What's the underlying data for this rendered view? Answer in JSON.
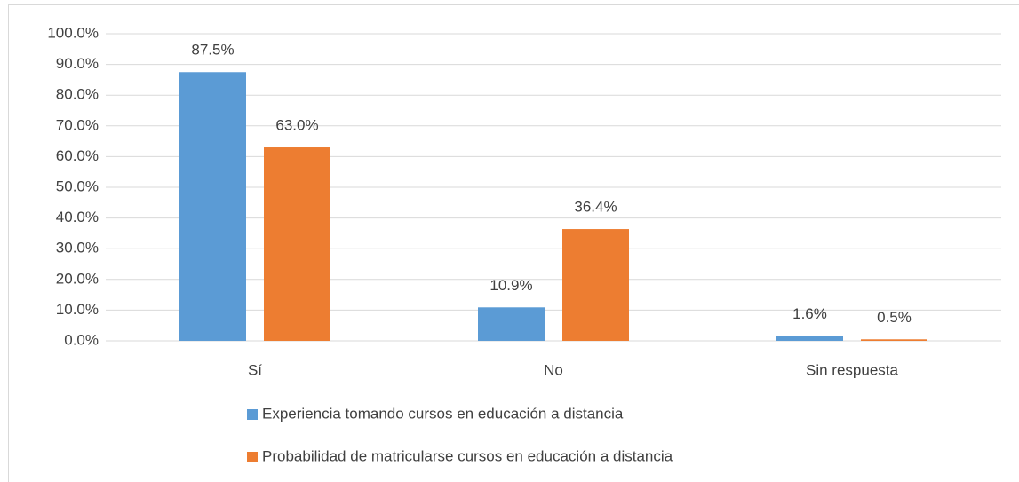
{
  "chart_data": {
    "type": "bar",
    "categories": [
      "Sí",
      "No",
      "Sin respuesta"
    ],
    "series": [
      {
        "name": "Experiencia tomando cursos en educación a distancia",
        "color": "#5b9bd5",
        "values": [
          87.5,
          10.9,
          1.6
        ],
        "value_labels": [
          "87.5%",
          "10.9%",
          "1.6%"
        ]
      },
      {
        "name": "Probabilidad de matricularse cursos en educación a distancia",
        "color": "#ed7d31",
        "values": [
          63.0,
          36.4,
          0.5
        ],
        "value_labels": [
          "63.0%",
          "36.4%",
          "0.5%"
        ]
      }
    ],
    "ylim": [
      0,
      100
    ],
    "yticks": [
      {
        "value": 0,
        "label": "0.0%"
      },
      {
        "value": 10,
        "label": "10.0%"
      },
      {
        "value": 20,
        "label": "20.0%"
      },
      {
        "value": 30,
        "label": "30.0%"
      },
      {
        "value": 40,
        "label": "40.0%"
      },
      {
        "value": 50,
        "label": "50.0%"
      },
      {
        "value": 60,
        "label": "60.0%"
      },
      {
        "value": 70,
        "label": "70.0%"
      },
      {
        "value": 80,
        "label": "80.0%"
      },
      {
        "value": 90,
        "label": "90.0%"
      },
      {
        "value": 100,
        "label": "100.0%"
      }
    ],
    "grid": true,
    "legend": "bottom"
  }
}
